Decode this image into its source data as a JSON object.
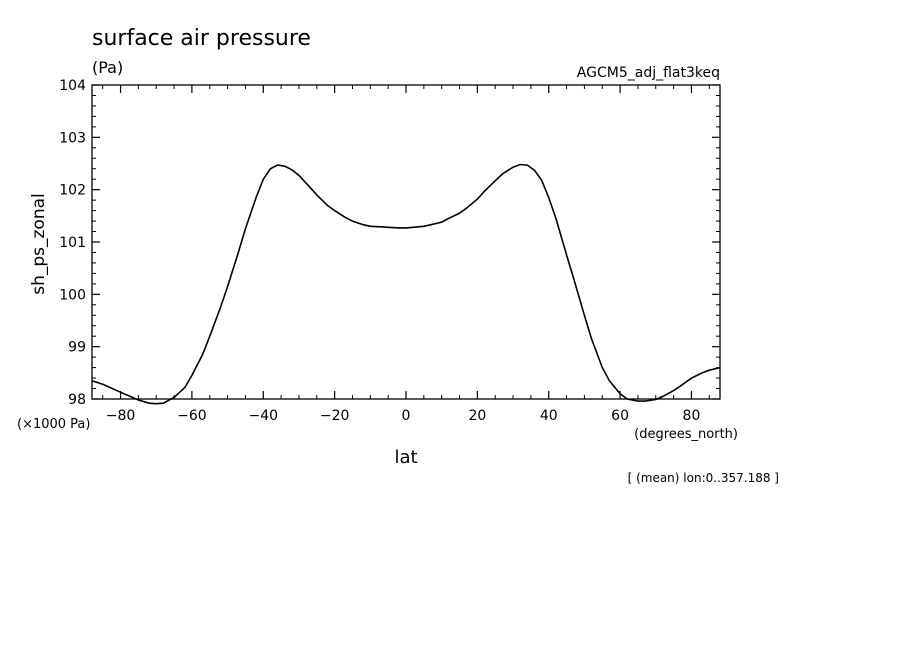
{
  "chart_data": {
    "type": "line",
    "title": "surface air pressure",
    "units": "(Pa)",
    "run_label": "AGCM5_adj_flat3keq",
    "ylabel": "sh_ps_zonal",
    "xlabel": "lat",
    "x_unit_label": "(degrees_north)",
    "y_scale_label": "(×1000 Pa)",
    "footnote": "[ (mean) lon:0..357.188 ]",
    "xlim": [
      -88,
      88
    ],
    "ylim": [
      98,
      104
    ],
    "x_ticks": [
      -80,
      -60,
      -40,
      -20,
      0,
      20,
      40,
      60,
      80
    ],
    "x_tick_labels": [
      "−80",
      "−60",
      "−40",
      "−20",
      "0",
      "20",
      "40",
      "60",
      "80"
    ],
    "y_ticks": [
      98,
      99,
      100,
      101,
      102,
      103,
      104
    ],
    "y_tick_labels": [
      "98",
      "99",
      "100",
      "101",
      "102",
      "103",
      "104"
    ],
    "grid": false,
    "series": [
      {
        "x": [
          -88,
          -85,
          -80,
          -75,
          -72,
          -70,
          -68,
          -65,
          -62,
          -60,
          -57,
          -55,
          -52,
          -50,
          -47,
          -45,
          -42,
          -40,
          -38,
          -36,
          -34,
          -32,
          -30,
          -27,
          -25,
          -22,
          -20,
          -17,
          -15,
          -12,
          -10,
          -7,
          -5,
          -2,
          0,
          2,
          5,
          7,
          10,
          12,
          15,
          17,
          20,
          22,
          25,
          27,
          30,
          32,
          34,
          36,
          38,
          40,
          42,
          45,
          47,
          50,
          52,
          55,
          57,
          60,
          62,
          65,
          67,
          70,
          72,
          75,
          78,
          80,
          83,
          85,
          88
        ],
        "y": [
          98.35,
          98.28,
          98.13,
          97.98,
          97.92,
          97.91,
          97.92,
          98.03,
          98.22,
          98.45,
          98.85,
          99.2,
          99.75,
          100.15,
          100.8,
          101.25,
          101.85,
          102.2,
          102.4,
          102.47,
          102.45,
          102.38,
          102.27,
          102.05,
          101.9,
          101.7,
          101.6,
          101.47,
          101.4,
          101.33,
          101.3,
          101.29,
          101.28,
          101.27,
          101.27,
          101.28,
          101.3,
          101.33,
          101.38,
          101.45,
          101.55,
          101.65,
          101.82,
          101.97,
          102.17,
          102.3,
          102.43,
          102.48,
          102.47,
          102.37,
          102.18,
          101.85,
          101.45,
          100.75,
          100.3,
          99.6,
          99.15,
          98.6,
          98.35,
          98.1,
          98.0,
          97.96,
          97.96,
          97.99,
          98.05,
          98.16,
          98.3,
          98.4,
          98.5,
          98.55,
          98.6
        ]
      }
    ]
  }
}
